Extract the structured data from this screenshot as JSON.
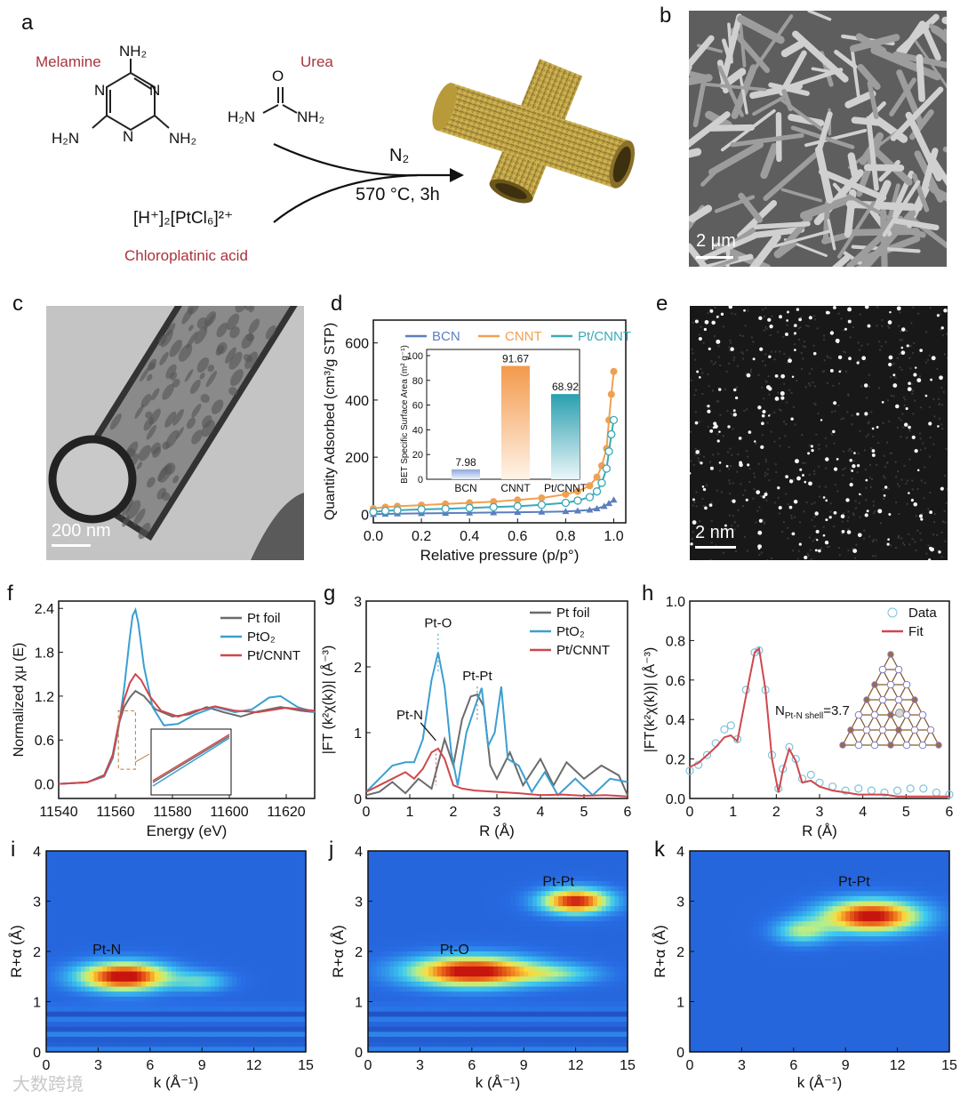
{
  "panels": {
    "a": "a",
    "b": "b",
    "c": "c",
    "d": "d",
    "e": "e",
    "f": "f",
    "g": "g",
    "h": "h",
    "i": "i",
    "j": "j",
    "k": "k"
  },
  "scheme": {
    "melamine_label": "Melamine",
    "urea_label": "Urea",
    "acid_label": "Chloroplatinic acid",
    "acid_formula": "[H⁺]₂[PtCl₆]²⁺",
    "gas": "N₂",
    "condition": "570 °C, 3h",
    "nh2": "NH₂",
    "h2n": "H₂N",
    "n": "N",
    "o": "O"
  },
  "micrographs": {
    "b_scale": "2 μm",
    "c_scale": "200 nm",
    "e_scale": "2 nm"
  },
  "watermark": "大数跨境",
  "colors": {
    "gray": "#6b6b6b",
    "blue": "#3b9fd0",
    "red": "#d0474b",
    "bcn": "#5b7ec0",
    "cnnt": "#f0a050",
    "ptcnnt": "#3aa9b8",
    "contour_low": "#1a3fb0",
    "contour_high": "#c81e10"
  },
  "chart_data": [
    {
      "id": "d",
      "type": "line",
      "xlabel": "Relative pressure (p/p°)",
      "ylabel": "Quantity Adsorbed (cm³/g STP)",
      "xlim": [
        0.0,
        1.05
      ],
      "ylim": [
        -30,
        680
      ],
      "xticks": [
        "0.0",
        "0.2",
        "0.4",
        "0.6",
        "0.8",
        "1.0"
      ],
      "yticks": [
        "0",
        "200",
        "400",
        "600"
      ],
      "series": [
        {
          "name": "BCN",
          "x": [
            0.0,
            0.05,
            0.1,
            0.2,
            0.3,
            0.4,
            0.5,
            0.6,
            0.7,
            0.8,
            0.85,
            0.9,
            0.93,
            0.96,
            0.98,
            1.0
          ],
          "y": [
            0,
            1,
            2,
            3,
            4,
            5,
            6,
            7,
            8,
            10,
            12,
            15,
            20,
            28,
            38,
            50
          ]
        },
        {
          "name": "CNNT",
          "x": [
            0.0,
            0.05,
            0.1,
            0.2,
            0.3,
            0.4,
            0.5,
            0.6,
            0.7,
            0.8,
            0.85,
            0.9,
            0.93,
            0.95,
            0.97,
            0.98,
            0.99,
            1.0
          ],
          "y": [
            20,
            25,
            28,
            32,
            36,
            40,
            44,
            50,
            57,
            70,
            80,
            100,
            130,
            170,
            230,
            330,
            420,
            500
          ]
        },
        {
          "name": "Pt/CNNT",
          "x": [
            0.0,
            0.05,
            0.1,
            0.2,
            0.3,
            0.4,
            0.5,
            0.6,
            0.7,
            0.8,
            0.85,
            0.9,
            0.93,
            0.95,
            0.97,
            0.98,
            0.99,
            1.0
          ],
          "y": [
            8,
            12,
            14,
            17,
            19,
            22,
            25,
            28,
            33,
            40,
            48,
            60,
            80,
            110,
            160,
            220,
            280,
            330
          ]
        }
      ],
      "inset": {
        "type": "bar",
        "ylabel": "BET Specific Surface Area (m² g⁻¹)",
        "categories": [
          "BCN",
          "CNNT",
          "Pt/CNNT"
        ],
        "values": [
          7.98,
          91.67,
          68.92
        ],
        "value_labels": [
          "7.98",
          "91.67",
          "68.92"
        ],
        "ylim": [
          0,
          105
        ],
        "yticks": [
          "0",
          "20",
          "40",
          "60",
          "80",
          "100"
        ]
      }
    },
    {
      "id": "f",
      "type": "line",
      "xlabel": "Energy (eV)",
      "ylabel": "Normalized χμ (E)",
      "xlim": [
        11540,
        11630
      ],
      "ylim": [
        -0.2,
        2.5
      ],
      "xticks": [
        "11540",
        "11560",
        "11580",
        "11600",
        "11620"
      ],
      "yticks": [
        "0.0",
        "0.6",
        "1.2",
        "1.8",
        "2.4"
      ],
      "series": [
        {
          "name": "Pt foil",
          "x": [
            11540,
            11550,
            11556,
            11559,
            11561,
            11563,
            11565,
            11567,
            11570,
            11574,
            11580,
            11586,
            11592,
            11598,
            11604,
            11610,
            11618,
            11625,
            11630
          ],
          "y": [
            0,
            0.02,
            0.12,
            0.4,
            0.8,
            1.05,
            1.18,
            1.27,
            1.2,
            1.02,
            0.92,
            0.95,
            1.05,
            0.98,
            0.92,
            0.99,
            1.05,
            1.0,
            0.98
          ]
        },
        {
          "name": "PtO₂",
          "x": [
            11540,
            11550,
            11556,
            11559,
            11561,
            11563,
            11565,
            11566,
            11567,
            11568,
            11570,
            11573,
            11577,
            11582,
            11588,
            11595,
            11602,
            11608,
            11614,
            11618,
            11624,
            11630
          ],
          "y": [
            0,
            0.02,
            0.1,
            0.35,
            0.75,
            1.3,
            2.0,
            2.3,
            2.38,
            2.2,
            1.6,
            1.05,
            0.8,
            0.82,
            0.95,
            1.05,
            0.98,
            1.02,
            1.18,
            1.2,
            1.05,
            0.98
          ]
        },
        {
          "name": "Pt/CNNT",
          "x": [
            11540,
            11550,
            11556,
            11559,
            11561,
            11563,
            11565,
            11567,
            11569,
            11572,
            11576,
            11582,
            11588,
            11595,
            11602,
            11610,
            11620,
            11630
          ],
          "y": [
            0,
            0.02,
            0.11,
            0.38,
            0.8,
            1.15,
            1.38,
            1.5,
            1.42,
            1.2,
            1.0,
            0.92,
            1.0,
            1.06,
            1.0,
            0.98,
            1.04,
            1.0
          ]
        }
      ]
    },
    {
      "id": "g",
      "type": "line",
      "xlabel": "R (Å)",
      "ylabel": "|FT (k²χ(k))| (Å⁻³)",
      "xlim": [
        0,
        6
      ],
      "ylim": [
        0,
        3
      ],
      "xticks": [
        "0",
        "1",
        "2",
        "3",
        "4",
        "5",
        "6"
      ],
      "yticks": [
        "0",
        "1",
        "2",
        "3"
      ],
      "annotations": [
        "Pt-O",
        "Pt-Pt",
        "Pt-N"
      ],
      "series": [
        {
          "name": "Pt foil",
          "x": [
            0,
            0.3,
            0.6,
            0.9,
            1.2,
            1.5,
            1.8,
            2.0,
            2.2,
            2.4,
            2.55,
            2.7,
            2.85,
            3.0,
            3.3,
            3.6,
            4.0,
            4.3,
            4.6,
            5.0,
            5.4,
            5.8,
            6.0
          ],
          "y": [
            0.05,
            0.1,
            0.25,
            0.08,
            0.3,
            0.15,
            0.9,
            0.5,
            1.2,
            1.55,
            1.58,
            1.4,
            0.5,
            0.3,
            0.7,
            0.2,
            0.6,
            0.2,
            0.55,
            0.3,
            0.5,
            0.35,
            0.05
          ]
        },
        {
          "name": "PtO₂",
          "x": [
            0,
            0.3,
            0.6,
            0.9,
            1.1,
            1.3,
            1.5,
            1.65,
            1.8,
            1.95,
            2.1,
            2.3,
            2.5,
            2.65,
            2.8,
            2.95,
            3.1,
            3.25,
            3.5,
            3.8,
            4.1,
            4.4,
            4.8,
            5.2,
            5.6,
            6.0
          ],
          "y": [
            0.1,
            0.3,
            0.5,
            0.55,
            0.55,
            0.9,
            1.8,
            2.22,
            1.7,
            0.7,
            0.2,
            1.0,
            1.4,
            1.68,
            0.8,
            1.0,
            1.7,
            0.6,
            0.5,
            0.1,
            0.4,
            0.05,
            0.3,
            0.05,
            0.3,
            0.25
          ]
        },
        {
          "name": "Pt/CNNT",
          "x": [
            0,
            0.3,
            0.6,
            0.9,
            1.1,
            1.3,
            1.5,
            1.65,
            1.8,
            2.0,
            2.2,
            2.5,
            3.0,
            3.5,
            4.0,
            4.5,
            5.0,
            5.5,
            6.0
          ],
          "y": [
            0.1,
            0.2,
            0.3,
            0.4,
            0.3,
            0.45,
            0.7,
            0.76,
            0.6,
            0.2,
            0.15,
            0.12,
            0.1,
            0.08,
            0.05,
            0.06,
            0.04,
            0.05,
            0.03
          ]
        }
      ]
    },
    {
      "id": "h",
      "type": "line",
      "xlabel": "R (Å)",
      "ylabel": "|FT(k²χ(k))| (Å⁻³)",
      "xlim": [
        0,
        6
      ],
      "ylim": [
        0,
        1.0
      ],
      "xticks": [
        "0",
        "1",
        "2",
        "3",
        "4",
        "5",
        "6"
      ],
      "yticks": [
        "0.0",
        "0.2",
        "0.4",
        "0.6",
        "0.8",
        "1.0"
      ],
      "annotation": "N",
      "annotation_sub": "Pt-N shell",
      "annotation_value": "=3.7",
      "series": [
        {
          "name": "Data",
          "style": "markers",
          "x": [
            0,
            0.2,
            0.4,
            0.6,
            0.8,
            0.95,
            1.1,
            1.3,
            1.5,
            1.6,
            1.75,
            1.9,
            2.05,
            2.15,
            2.3,
            2.45,
            2.6,
            2.8,
            3.0,
            3.3,
            3.6,
            3.9,
            4.2,
            4.5,
            4.8,
            5.1,
            5.4,
            5.7,
            6.0
          ],
          "y": [
            0.14,
            0.17,
            0.22,
            0.28,
            0.35,
            0.37,
            0.3,
            0.55,
            0.74,
            0.75,
            0.55,
            0.22,
            0.05,
            0.15,
            0.26,
            0.2,
            0.1,
            0.12,
            0.08,
            0.06,
            0.04,
            0.05,
            0.04,
            0.03,
            0.04,
            0.05,
            0.05,
            0.03,
            0.02
          ]
        },
        {
          "name": "Fit",
          "style": "line",
          "x": [
            0,
            0.2,
            0.4,
            0.6,
            0.8,
            0.95,
            1.1,
            1.3,
            1.5,
            1.6,
            1.75,
            1.9,
            2.05,
            2.15,
            2.3,
            2.45,
            2.6,
            2.8,
            3.0,
            3.3,
            3.6,
            3.9,
            4.2,
            4.5,
            4.8,
            5.1,
            5.4,
            5.7,
            6.0
          ],
          "y": [
            0.16,
            0.18,
            0.22,
            0.26,
            0.31,
            0.32,
            0.29,
            0.52,
            0.74,
            0.76,
            0.55,
            0.2,
            0.03,
            0.14,
            0.25,
            0.19,
            0.08,
            0.09,
            0.06,
            0.04,
            0.03,
            0.02,
            0.02,
            0.02,
            0.01,
            0.01,
            0.01,
            0.01,
            0.01
          ]
        }
      ]
    },
    {
      "id": "i",
      "type": "heatmap",
      "xlabel": "k (Å⁻¹)",
      "ylabel": "R+α (Å)",
      "xlim": [
        0,
        15
      ],
      "ylim": [
        0,
        4
      ],
      "xticks": [
        "0",
        "3",
        "6",
        "9",
        "12",
        "15"
      ],
      "yticks": [
        "0",
        "1",
        "2",
        "3",
        "4"
      ],
      "peak_label": "Pt-N",
      "peak": {
        "k": 4.5,
        "r": 1.5
      }
    },
    {
      "id": "j",
      "type": "heatmap",
      "xlabel": "k (Å⁻¹)",
      "ylabel": "R+α (Å)",
      "xlim": [
        0,
        15
      ],
      "ylim": [
        0,
        4
      ],
      "xticks": [
        "0",
        "3",
        "6",
        "9",
        "12",
        "15"
      ],
      "yticks": [
        "0",
        "1",
        "2",
        "3",
        "4"
      ],
      "peak_labels": [
        "Pt-O",
        "Pt-Pt"
      ],
      "peaks": [
        {
          "k": 6,
          "r": 1.6
        },
        {
          "k": 12,
          "r": 3.0
        }
      ]
    },
    {
      "id": "k",
      "type": "heatmap",
      "xlabel": "k (Å⁻¹)",
      "ylabel": "R+α (Å)",
      "xlim": [
        0,
        15
      ],
      "ylim": [
        0,
        4
      ],
      "xticks": [
        "0",
        "3",
        "6",
        "9",
        "12",
        "15"
      ],
      "yticks": [
        "0",
        "1",
        "2",
        "3",
        "4"
      ],
      "peak_label": "Pt-Pt",
      "peak": {
        "k": 10,
        "r": 2.7
      }
    }
  ]
}
